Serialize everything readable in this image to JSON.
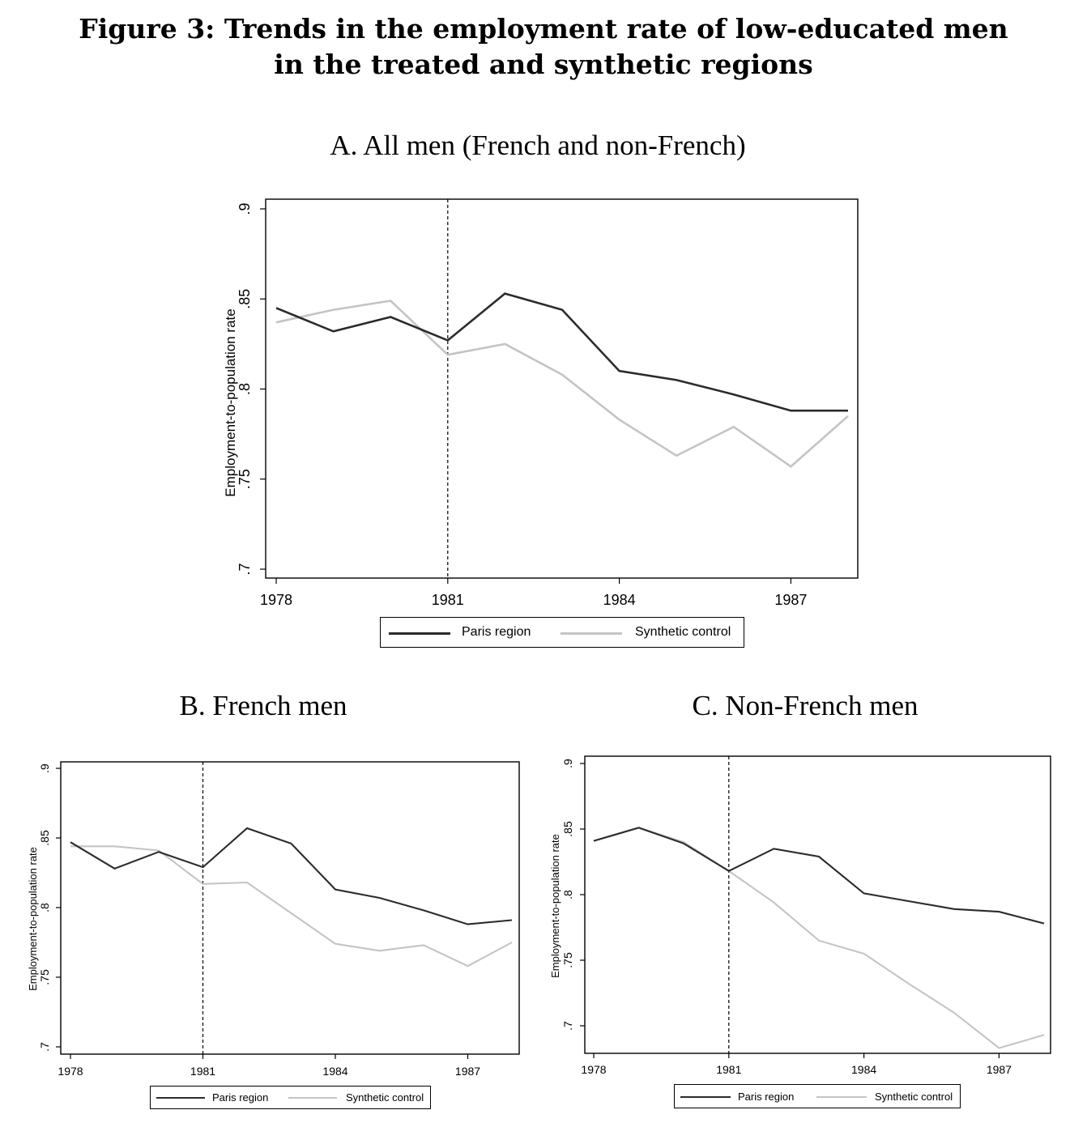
{
  "figure": {
    "title_line1": "Figure 3: Trends in the employment rate of low-educated men",
    "title_line2": "in the treated and synthetic regions"
  },
  "colors": {
    "paris": "#2b2b2b",
    "synthetic": "#c4c4c4"
  },
  "chart_data": [
    {
      "type": "line",
      "title": "A. All men (French and non-French)",
      "xlabel": "",
      "ylabel": "Employment-to-population rate",
      "x": [
        1978,
        1979,
        1980,
        1981,
        1982,
        1983,
        1984,
        1985,
        1986,
        1987,
        1988
      ],
      "xticks": [
        1978,
        1981,
        1984,
        1987
      ],
      "xtick_labels": [
        "1978",
        "1981",
        "1984",
        "1987"
      ],
      "yticks": [
        0.7,
        0.75,
        0.8,
        0.85,
        0.9
      ],
      "ytick_labels": [
        ".7",
        ".75",
        ".8",
        ".85",
        ".9"
      ],
      "ylim": [
        0.7,
        0.9
      ],
      "treatment_line": 1981,
      "grid": false,
      "legend_position": "bottom",
      "series": [
        {
          "name": "Paris region",
          "values": [
            0.845,
            0.832,
            0.84,
            0.827,
            0.853,
            0.844,
            0.81,
            0.805,
            0.797,
            0.788,
            0.788
          ]
        },
        {
          "name": "Synthetic control",
          "values": [
            0.837,
            0.844,
            0.849,
            0.819,
            0.825,
            0.808,
            0.783,
            0.763,
            0.779,
            0.757,
            0.785
          ]
        }
      ]
    },
    {
      "type": "line",
      "title": "B. French men",
      "xlabel": "",
      "ylabel": "Employment-to-population rate",
      "x": [
        1978,
        1979,
        1980,
        1981,
        1982,
        1983,
        1984,
        1985,
        1986,
        1987,
        1988
      ],
      "xticks": [
        1978,
        1981,
        1984,
        1987
      ],
      "xtick_labels": [
        "1978",
        "1981",
        "1984",
        "1987"
      ],
      "yticks": [
        0.7,
        0.75,
        0.8,
        0.85,
        0.9
      ],
      "ytick_labels": [
        ".7",
        ".75",
        ".8",
        ".85",
        ".9"
      ],
      "ylim": [
        0.7,
        0.9
      ],
      "treatment_line": 1981,
      "grid": false,
      "legend_position": "bottom",
      "series": [
        {
          "name": "Paris region",
          "values": [
            0.847,
            0.828,
            0.84,
            0.829,
            0.857,
            0.846,
            0.813,
            0.807,
            0.798,
            0.788,
            0.791
          ]
        },
        {
          "name": "Synthetic control",
          "values": [
            0.844,
            0.844,
            0.841,
            0.817,
            0.818,
            0.796,
            0.774,
            0.769,
            0.773,
            0.758,
            0.775
          ]
        }
      ]
    },
    {
      "type": "line",
      "title": "C. Non-French men",
      "xlabel": "",
      "ylabel": "Employment-to-population rate",
      "x": [
        1978,
        1979,
        1980,
        1981,
        1982,
        1983,
        1984,
        1985,
        1986,
        1987,
        1988
      ],
      "xticks": [
        1978,
        1981,
        1984,
        1987
      ],
      "xtick_labels": [
        "1978",
        "1981",
        "1984",
        "1987"
      ],
      "yticks": [
        0.7,
        0.75,
        0.8,
        0.85,
        0.9
      ],
      "ytick_labels": [
        ".7",
        ".75",
        ".8",
        ".85",
        ".9"
      ],
      "ylim": [
        0.7,
        0.9
      ],
      "treatment_line": 1981,
      "grid": false,
      "legend_position": "bottom",
      "series": [
        {
          "name": "Paris region",
          "values": [
            0.841,
            0.851,
            0.839,
            0.818,
            0.835,
            0.829,
            0.801,
            0.795,
            0.789,
            0.787,
            0.778
          ]
        },
        {
          "name": "Synthetic control",
          "values": [
            0.841,
            0.851,
            0.84,
            0.818,
            0.794,
            0.765,
            0.755,
            0.732,
            0.71,
            0.683,
            0.693
          ]
        }
      ]
    }
  ]
}
